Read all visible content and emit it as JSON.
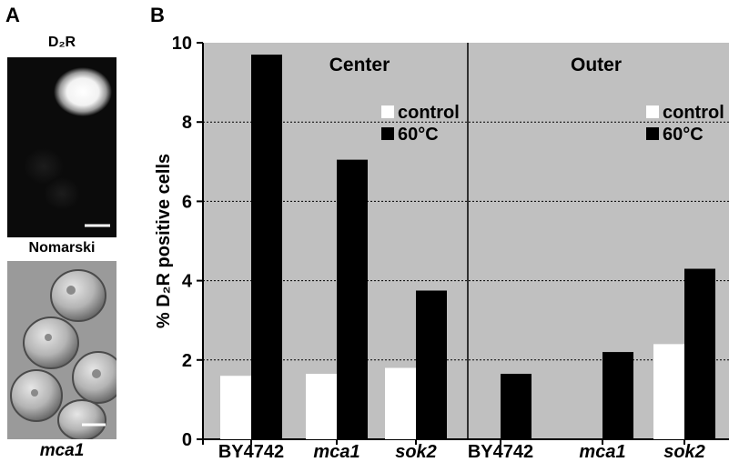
{
  "panel_a": {
    "letter": "A",
    "top_image_label": "D₂R",
    "bottom_image_label": "Nomarski",
    "strain_label": "mca1"
  },
  "panel_b": {
    "letter": "B"
  },
  "colors": {
    "plot_bg": "#c0c0c0",
    "control": "#ffffff",
    "heat": "#000000"
  },
  "chart_data": {
    "type": "bar",
    "ylabel": "% D₂R positive cells",
    "ylim": [
      0,
      10
    ],
    "yticks": [
      0,
      2,
      4,
      6,
      8,
      10
    ],
    "grid": "horizontal dotted",
    "legend_placement": "top-right of each panel",
    "panels": [
      {
        "title": "Center",
        "categories": [
          "BY4742",
          "mca1",
          "sok2"
        ],
        "series": [
          {
            "name": "control",
            "values": [
              1.6,
              1.65,
              1.8
            ]
          },
          {
            "name": "60°C",
            "values": [
              9.7,
              7.05,
              3.75
            ]
          }
        ]
      },
      {
        "title": "Outer",
        "categories": [
          "BY4742",
          "mca1",
          "sok2"
        ],
        "series": [
          {
            "name": "control",
            "values": [
              0,
              0,
              2.4
            ]
          },
          {
            "name": "60°C",
            "values": [
              1.65,
              2.2,
              4.3
            ]
          }
        ]
      }
    ]
  }
}
